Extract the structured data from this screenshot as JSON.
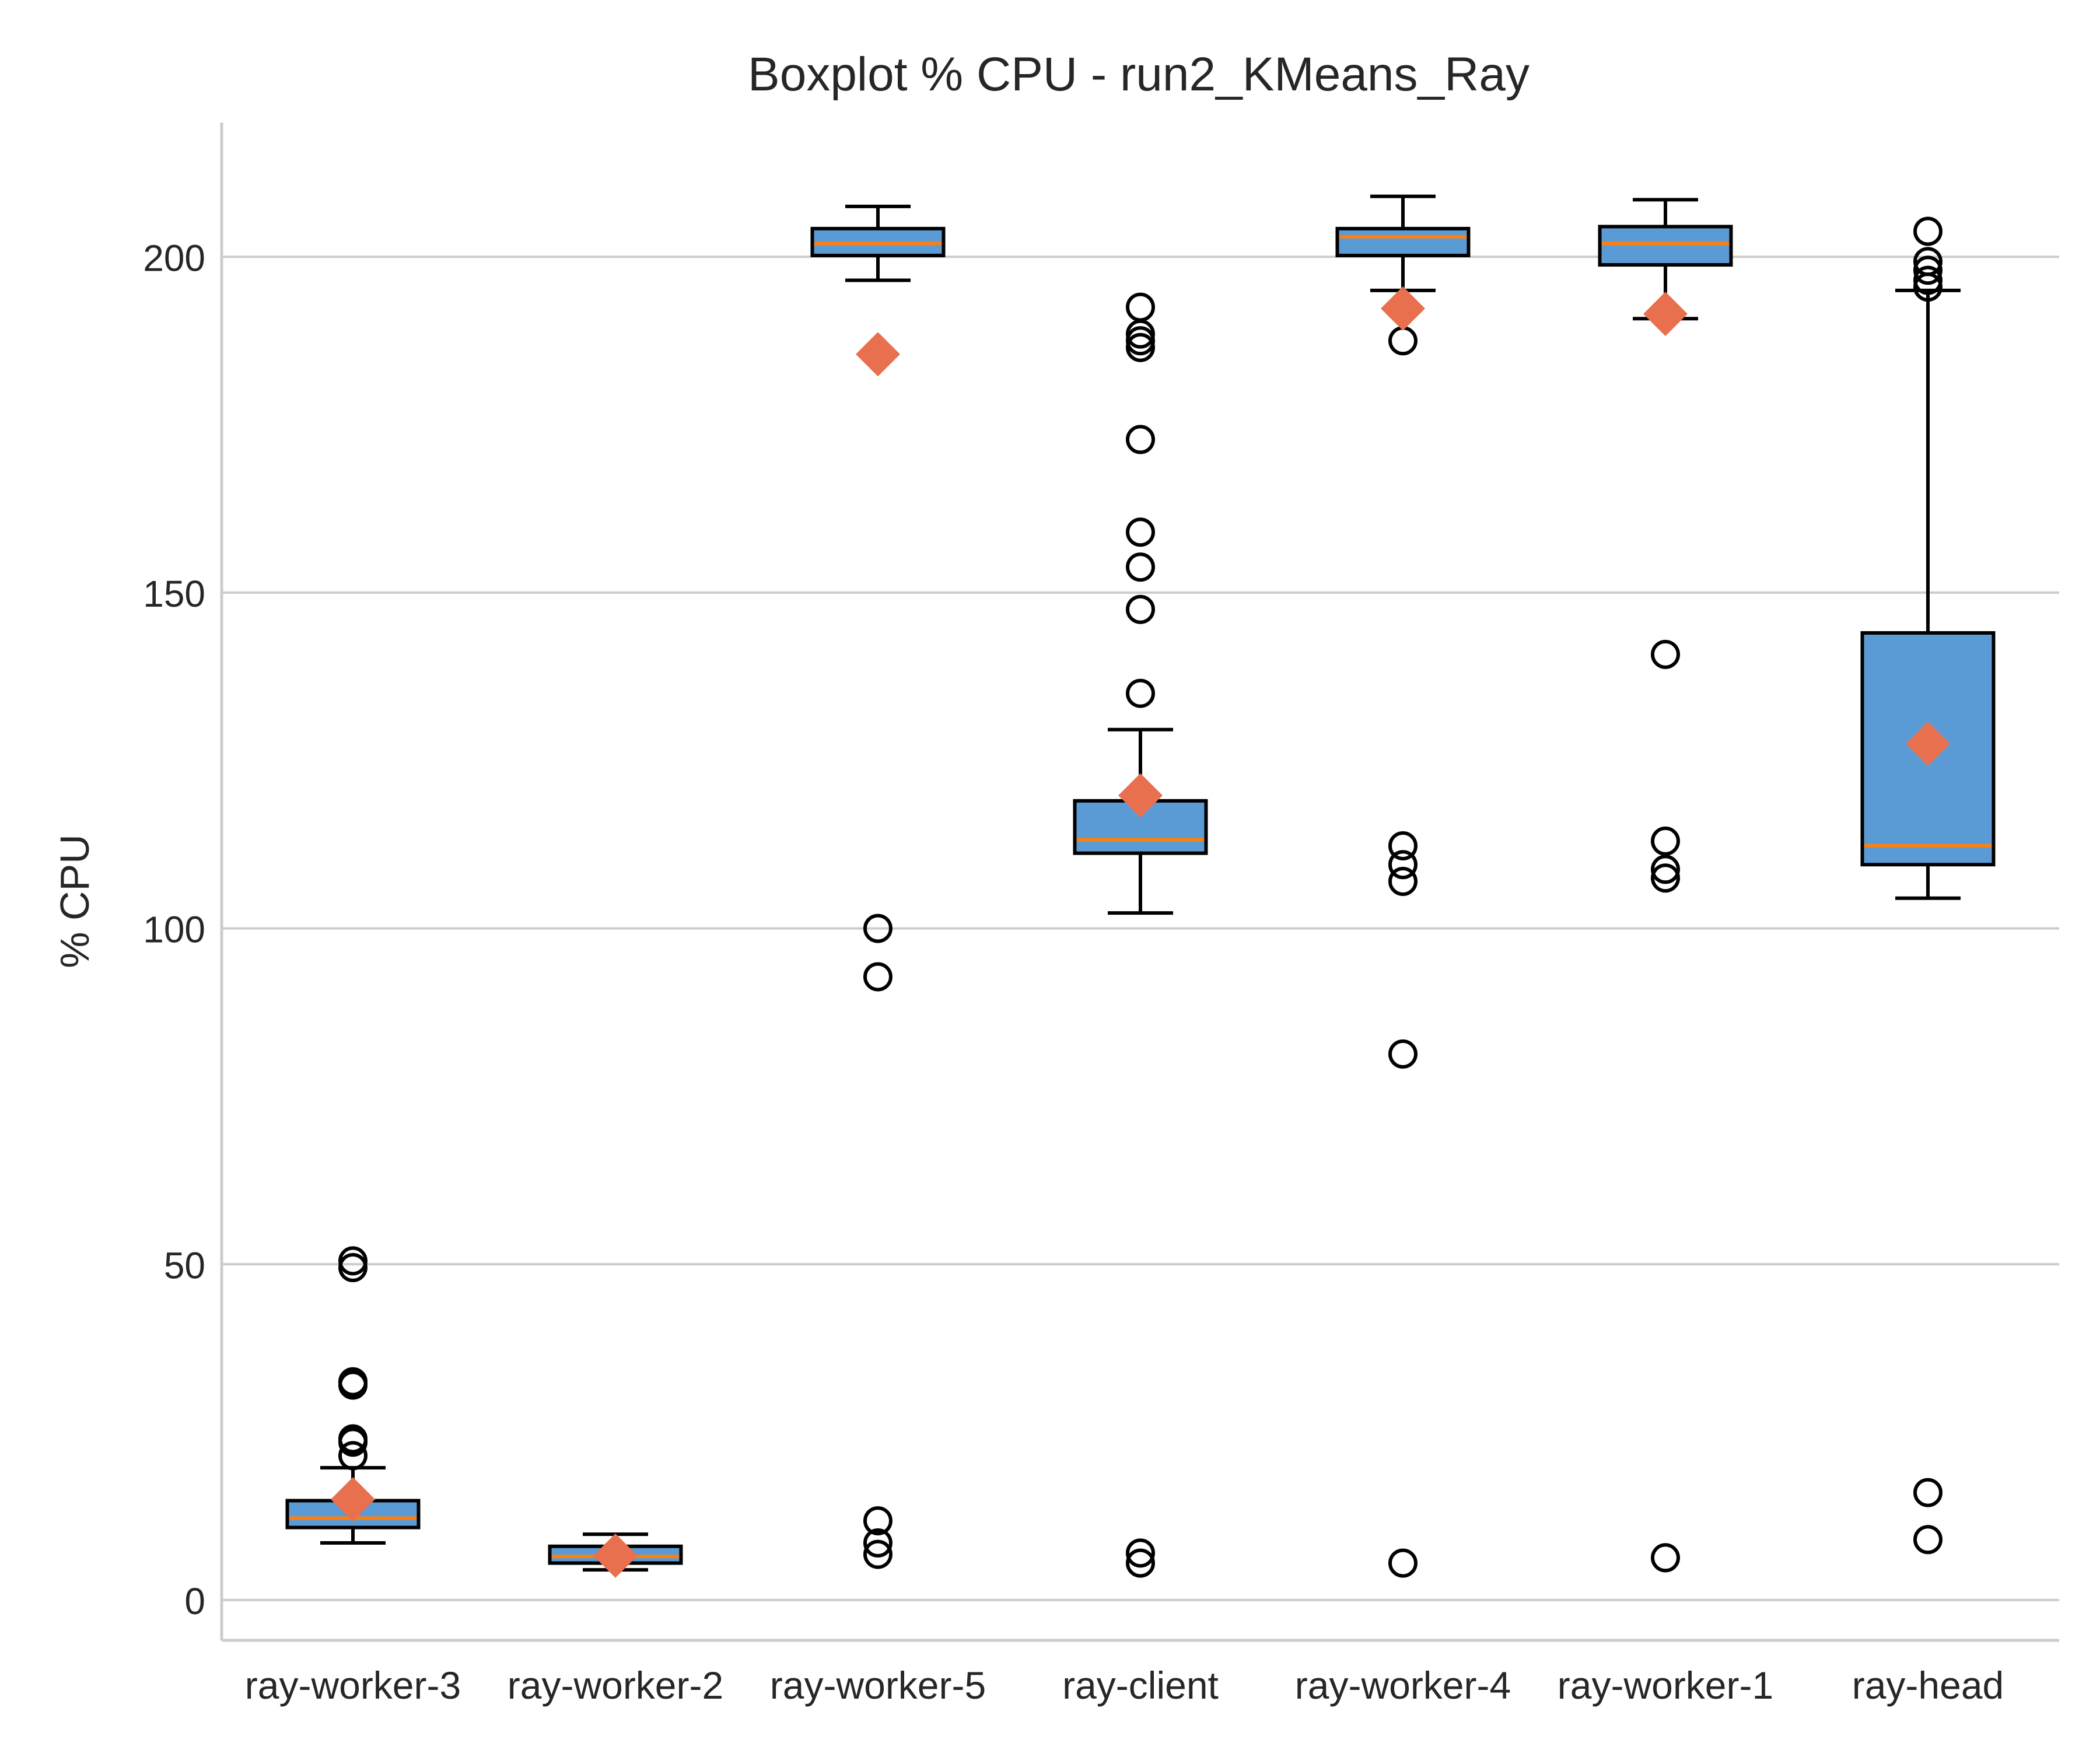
{
  "chart_data": {
    "type": "box",
    "title": "Boxplot % CPU - run2_KMeans_Ray",
    "xlabel": "",
    "ylabel": "% CPU",
    "ylim": [
      -6,
      220
    ],
    "yticks": [
      0,
      50,
      100,
      150,
      200
    ],
    "grid": "y",
    "legend": "none",
    "colors": {
      "box_fill": "#5b9bd5",
      "box_edge": "#000000",
      "median": "#ff7f0e",
      "mean_marker": "#e8704f",
      "grid": "#cccccc",
      "axis": "#cccccc"
    },
    "categories": [
      "ray-worker-3",
      "ray-worker-2",
      "ray-worker-5",
      "ray-client",
      "ray-worker-4",
      "ray-worker-1",
      "ray-head"
    ],
    "boxes": [
      {
        "label": "ray-worker-3",
        "whisker_low": 8.5,
        "q1": 10.8,
        "median": 12.2,
        "q3": 14.8,
        "whisker_high": 19.7,
        "mean": 15.0,
        "outliers": [
          21.5,
          23.5,
          24.0,
          32.0,
          32.5,
          49.5,
          50.5
        ]
      },
      {
        "label": "ray-worker-2",
        "whisker_low": 4.5,
        "q1": 5.5,
        "median": 6.5,
        "q3": 8.0,
        "whisker_high": 9.8,
        "mean": 6.6,
        "outliers": []
      },
      {
        "label": "ray-worker-5",
        "whisker_low": 196.5,
        "q1": 200.2,
        "median": 202.0,
        "q3": 204.2,
        "whisker_high": 207.5,
        "mean": 185.5,
        "outliers": [
          100.0,
          92.8,
          11.8,
          8.5,
          6.8
        ]
      },
      {
        "label": "ray-client",
        "whisker_low": 102.3,
        "q1": 111.2,
        "median": 113.2,
        "q3": 119.0,
        "whisker_high": 129.6,
        "mean": 119.8,
        "outliers": [
          192.5,
          188.5,
          187.5,
          186.5,
          172.8,
          159.0,
          153.8,
          147.5,
          135.0,
          7.0,
          5.5
        ]
      },
      {
        "label": "ray-worker-4",
        "whisker_low": 195.0,
        "q1": 200.2,
        "median": 203.0,
        "q3": 204.2,
        "whisker_high": 209.0,
        "mean": 192.3,
        "outliers": [
          187.5,
          112.3,
          109.5,
          107.0,
          81.3,
          5.5
        ]
      },
      {
        "label": "ray-worker-1",
        "whisker_low": 190.8,
        "q1": 198.8,
        "median": 202.0,
        "q3": 204.5,
        "whisker_high": 208.5,
        "mean": 191.5,
        "outliers": [
          140.8,
          113.0,
          108.8,
          107.5,
          6.3
        ]
      },
      {
        "label": "ray-head",
        "whisker_low": 104.5,
        "q1": 109.5,
        "median": 112.3,
        "q3": 144.0,
        "whisker_high": 195.0,
        "mean": 127.5,
        "outliers": [
          203.8,
          199.3,
          198.0,
          196.5,
          195.5,
          16.0,
          9.0
        ]
      }
    ]
  }
}
